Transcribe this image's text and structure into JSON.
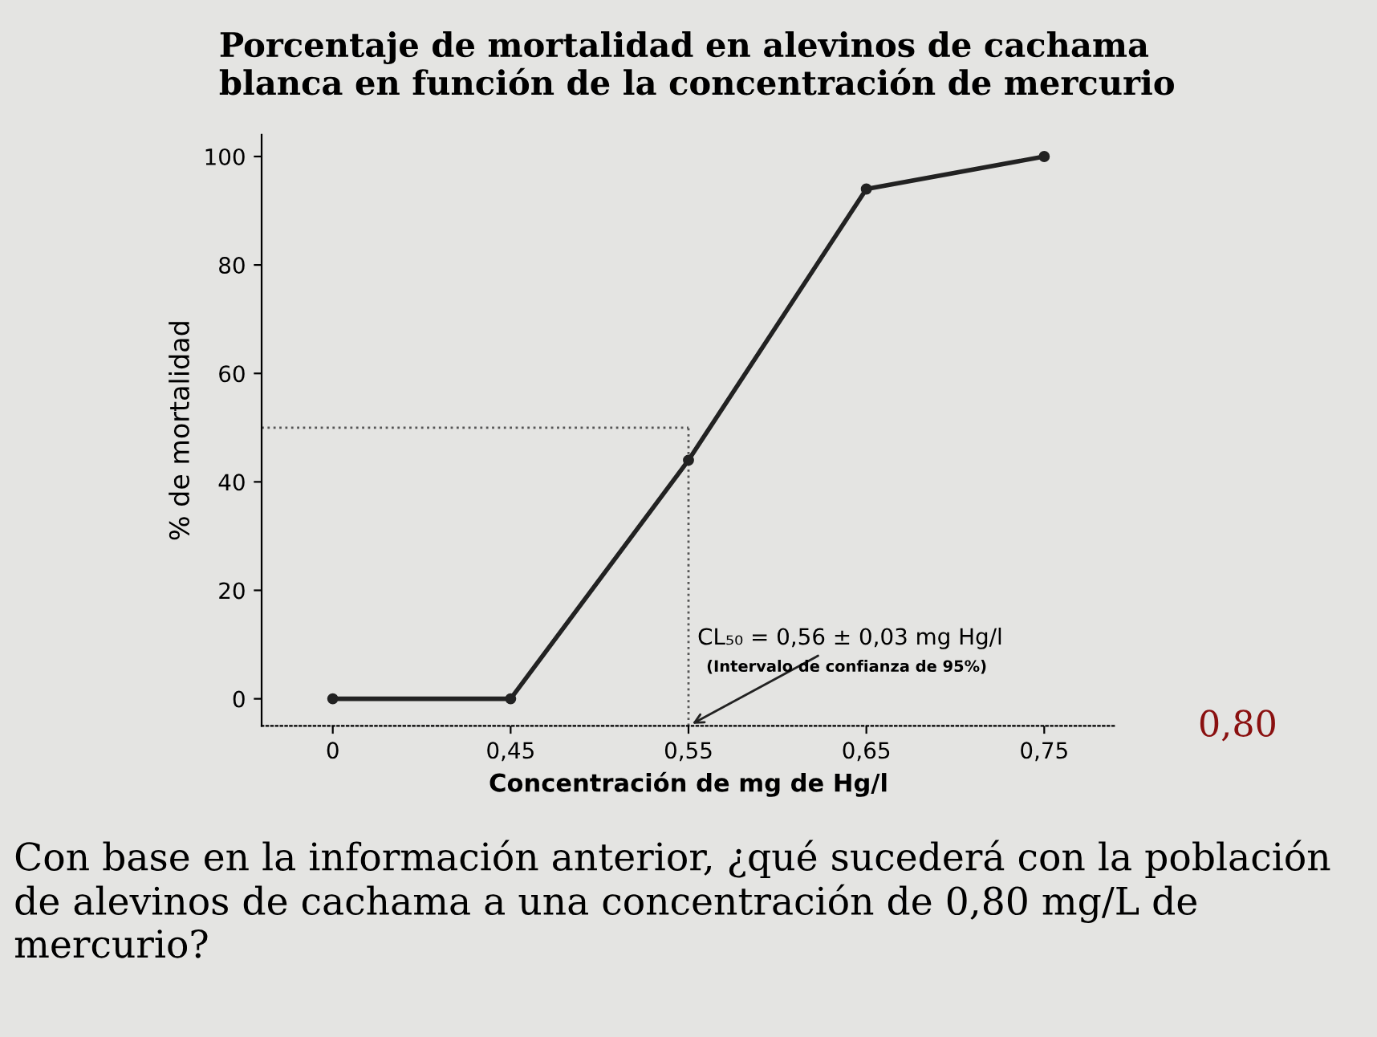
{
  "chart_data": {
    "type": "line",
    "title": "Porcentaje de mortalidad en alevinos de cachama\nblanca en función de la concentración de mercurio",
    "xlabel": "Concentración de mg de Hg/l",
    "ylabel": "% de mortalidad",
    "categories": [
      "0",
      "0,45",
      "0,55",
      "0,65",
      "0,75"
    ],
    "series": [
      {
        "color": "#222222",
        "values": [
          0,
          0,
          44,
          94,
          100
        ]
      }
    ],
    "ylim": [
      -5,
      104
    ],
    "yticks": [
      0,
      20,
      40,
      60,
      80,
      100
    ],
    "grid": false,
    "marker": "circle",
    "line_style": "solid",
    "ref_lines": [
      {
        "axis": "y",
        "value": 50,
        "color": "#555555",
        "line_style": "dotted"
      },
      {
        "axis": "x",
        "value": "0,55",
        "color": "#555555",
        "line_style": "dotted"
      }
    ],
    "annotations": [
      {
        "text": "CL₅₀ = 0,56 ± 0,03 mg Hg/l",
        "x": "0,55",
        "y": -5
      },
      "(Intervalo de confianza de 95%)",
      "0,80",
      "Con base en la información anterior, ¿qué sucederá con la población de alevinos de cachama a una concentración de 0,80 mg/L de mercurio?"
    ]
  }
}
